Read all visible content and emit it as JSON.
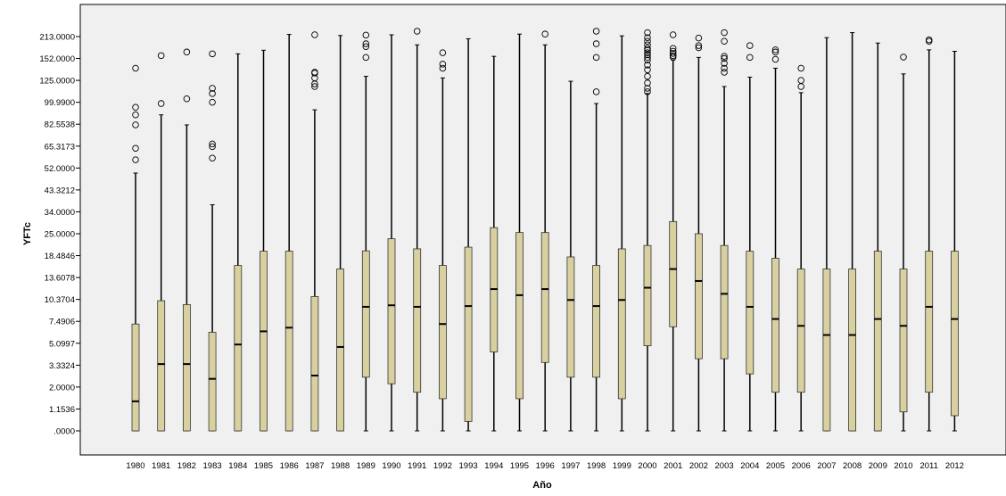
{
  "chart_data": {
    "type": "boxplot",
    "title": "",
    "xlabel": "Año",
    "ylabel": "YFTc",
    "grid": false,
    "legend": "none",
    "colors": {
      "box_fill": "#d9d0a0",
      "box_stroke": "#333333",
      "plot_background": "#f0f0f0",
      "median": "#000000"
    },
    "y_ticks": [
      "213.0000",
      "152.0000",
      "125.0000",
      "99.9900",
      "82.5538",
      "65.3173",
      "52.0000",
      "43.3212",
      "34.0000",
      "25.0000",
      "18.4846",
      "13.6078",
      "10.3704",
      "7.4906",
      "5.0997",
      "3.3324",
      "2.0000",
      "1.1536",
      ".0000"
    ],
    "categories": [
      "1980",
      "1981",
      "1982",
      "1983",
      "1984",
      "1985",
      "1986",
      "1987",
      "1988",
      "1989",
      "1990",
      "1991",
      "1992",
      "1993",
      "1994",
      "1995",
      "1996",
      "1997",
      "1998",
      "1999",
      "2000",
      "2001",
      "2002",
      "2003",
      "2004",
      "2005",
      "2006",
      "2007",
      "2008",
      "2009",
      "2010",
      "2011",
      "2012"
    ],
    "boxes": [
      {
        "year": "1980",
        "min": 0,
        "q1": 0,
        "median": 1.45,
        "q3": 7.2,
        "max": 50,
        "outliers": [
          57,
          64,
          82,
          90,
          96,
          140
        ]
      },
      {
        "year": "1981",
        "min": 0,
        "q1": 0,
        "median": 3.42,
        "q3": 10.2,
        "max": 90,
        "outliers": [
          99,
          160
        ]
      },
      {
        "year": "1982",
        "min": 0,
        "q1": 0,
        "median": 3.42,
        "q3": 9.7,
        "max": 82,
        "outliers": [
          104,
          170
        ]
      },
      {
        "year": "1983",
        "min": 0,
        "q1": 0,
        "median": 2.5,
        "q3": 6.3,
        "max": 37,
        "outliers": [
          58,
          65,
          67,
          100,
          110,
          116,
          165
        ]
      },
      {
        "year": "1984",
        "min": 0,
        "q1": 0,
        "median": 5.0,
        "q3": 16.3,
        "max": 165
      },
      {
        "year": "1985",
        "min": 0,
        "q1": 0,
        "median": 6.4,
        "q3": 19.8,
        "max": 175
      },
      {
        "year": "1986",
        "min": 0,
        "q1": 0,
        "median": 6.8,
        "q3": 19.8,
        "max": 219
      },
      {
        "year": "1987",
        "min": 0,
        "q1": 0,
        "median": 2.7,
        "q3": 10.8,
        "max": 94,
        "outliers": [
          118,
          121,
          128,
          134,
          135,
          218
        ]
      },
      {
        "year": "1988",
        "min": 0,
        "q1": 0,
        "median": 4.8,
        "q3": 15.5,
        "max": 216
      },
      {
        "year": "1989",
        "min": 0,
        "q1": 2.6,
        "median": 9.4,
        "q3": 19.9,
        "max": 130,
        "outliers": [
          155,
          185,
          193,
          217
        ]
      },
      {
        "year": "1990",
        "min": 0,
        "q1": 2.2,
        "median": 9.6,
        "q3": 23.5,
        "max": 218
      },
      {
        "year": "1991",
        "min": 0,
        "q1": 1.8,
        "median": 9.4,
        "q3": 20.5,
        "max": 190,
        "outliers": [
          228
        ]
      },
      {
        "year": "1992",
        "min": 0,
        "q1": 1.55,
        "median": 7.2,
        "q3": 16.3,
        "max": 128,
        "outliers": [
          140,
          145,
          168
        ]
      },
      {
        "year": "1993",
        "min": 0,
        "q1": 0.5,
        "median": 9.5,
        "q3": 21,
        "max": 207
      },
      {
        "year": "1994",
        "min": 0,
        "q1": 4.4,
        "median": 11.9,
        "q3": 27.5,
        "max": 158
      },
      {
        "year": "1995",
        "min": 0,
        "q1": 1.55,
        "median": 11.0,
        "q3": 25.5,
        "max": 220
      },
      {
        "year": "1996",
        "min": 0,
        "q1": 3.55,
        "median": 11.9,
        "q3": 25.5,
        "max": 190,
        "outliers": [
          220
        ]
      },
      {
        "year": "1997",
        "min": 0,
        "q1": 2.6,
        "median": 10.3,
        "q3": 18.2,
        "max": 124
      },
      {
        "year": "1998",
        "min": 0,
        "q1": 2.6,
        "median": 9.5,
        "q3": 16.3,
        "max": 99,
        "outliers": [
          112,
          155,
          193,
          228
        ]
      },
      {
        "year": "1999",
        "min": 0,
        "q1": 1.55,
        "median": 10.3,
        "q3": 20.5,
        "max": 215
      },
      {
        "year": "2000",
        "min": 0,
        "q1": 4.9,
        "median": 12.1,
        "q3": 21.5,
        "max": 110,
        "outliers": [
          112,
          116,
          122,
          130,
          138,
          144,
          150,
          155,
          162,
          168,
          175,
          180,
          190,
          200,
          210,
          224
        ]
      },
      {
        "year": "2001",
        "min": 0,
        "q1": 6.9,
        "median": 15.5,
        "q3": 30,
        "max": 150,
        "outliers": [
          156,
          160,
          166,
          172,
          180,
          218
        ]
      },
      {
        "year": "2002",
        "min": 0,
        "q1": 3.85,
        "median": 13.1,
        "q3": 25.0,
        "max": 155,
        "outliers": [
          182,
          188,
          209
        ]
      },
      {
        "year": "2003",
        "min": 0,
        "q1": 3.85,
        "median": 11.2,
        "q3": 21.5,
        "max": 118,
        "outliers": [
          135,
          140,
          146,
          152,
          158,
          200,
          224
        ]
      },
      {
        "year": "2004",
        "min": 0,
        "q1": 2.8,
        "median": 9.4,
        "q3": 19.8,
        "max": 129,
        "outliers": [
          155,
          188
        ]
      },
      {
        "year": "2005",
        "min": 0,
        "q1": 1.8,
        "median": 7.8,
        "q3": 17.9,
        "max": 140,
        "outliers": [
          151,
          170,
          176
        ]
      },
      {
        "year": "2006",
        "min": 0,
        "q1": 1.8,
        "median": 7.0,
        "q3": 15.5,
        "max": 111,
        "outliers": [
          118,
          125,
          140
        ]
      },
      {
        "year": "2007",
        "min": 0,
        "q1": 0,
        "median": 6.0,
        "q3": 15.5,
        "max": 210
      },
      {
        "year": "2008",
        "min": 0,
        "q1": 0,
        "median": 6.0,
        "q3": 15.5,
        "max": 224
      },
      {
        "year": "2009",
        "min": 0,
        "q1": 0,
        "median": 7.8,
        "q3": 19.8,
        "max": 195
      },
      {
        "year": "2010",
        "min": 0,
        "q1": 1.0,
        "median": 7.0,
        "q3": 15.5,
        "max": 133,
        "outliers": [
          156
        ]
      },
      {
        "year": "2011",
        "min": 0,
        "q1": 1.8,
        "median": 9.4,
        "q3": 19.8,
        "max": 176,
        "outliers": [
          200,
          204
        ]
      },
      {
        "year": "2012",
        "min": 0,
        "q1": 0.8,
        "median": 7.8,
        "q3": 19.8,
        "max": 172
      }
    ]
  }
}
